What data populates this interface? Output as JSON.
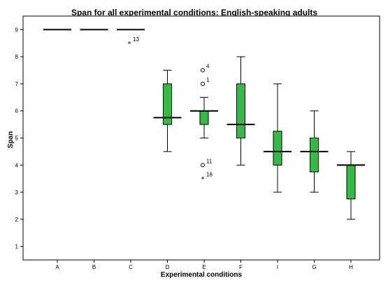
{
  "chart_data": {
    "type": "box",
    "title": "Span for all experimental conditions: English-speaking adults",
    "xlabel": "Experimental conditions",
    "ylabel": "Span",
    "ylim": [
      0.5,
      9.5
    ],
    "yticks": [
      1,
      2,
      3,
      4,
      5,
      6,
      7,
      8,
      9
    ],
    "categories": [
      "A",
      "B",
      "C",
      "D",
      "E",
      "F",
      "I",
      "G",
      "H"
    ],
    "box_color": "#33bb44",
    "grid": false,
    "boxes": [
      {
        "category": "A",
        "min": 9,
        "q1": 9,
        "median": 9,
        "q3": 9,
        "max": 9,
        "outliers": []
      },
      {
        "category": "B",
        "min": 9,
        "q1": 9,
        "median": 9,
        "q3": 9,
        "max": 9,
        "outliers": []
      },
      {
        "category": "C",
        "min": 9,
        "q1": 9,
        "median": 9,
        "q3": 9,
        "max": 9,
        "outliers": [
          {
            "value": 8.5,
            "marker": "star",
            "label": "13"
          }
        ]
      },
      {
        "category": "D",
        "min": 4.5,
        "q1": 5.5,
        "median": 5.75,
        "q3": 7,
        "max": 7.5,
        "outliers": []
      },
      {
        "category": "E",
        "min": 5,
        "q1": 5.5,
        "median": 6,
        "q3": 6,
        "max": 6.5,
        "outliers": [
          {
            "value": 7.5,
            "marker": "circle",
            "label": "4"
          },
          {
            "value": 7,
            "marker": "circle",
            "label": "1"
          },
          {
            "value": 4,
            "marker": "circle",
            "label": "11"
          },
          {
            "value": 3.5,
            "marker": "star",
            "label": "18"
          }
        ]
      },
      {
        "category": "F",
        "min": 4,
        "q1": 5,
        "median": 5.5,
        "q3": 7,
        "max": 8,
        "outliers": []
      },
      {
        "category": "I",
        "min": 3,
        "q1": 4,
        "median": 4.5,
        "q3": 5.25,
        "max": 7,
        "outliers": []
      },
      {
        "category": "G",
        "min": 3,
        "q1": 3.75,
        "median": 4.5,
        "q3": 5,
        "max": 6,
        "outliers": []
      },
      {
        "category": "H",
        "min": 2,
        "q1": 2.75,
        "median": 4,
        "q3": 4,
        "max": 4.5,
        "outliers": []
      }
    ]
  }
}
